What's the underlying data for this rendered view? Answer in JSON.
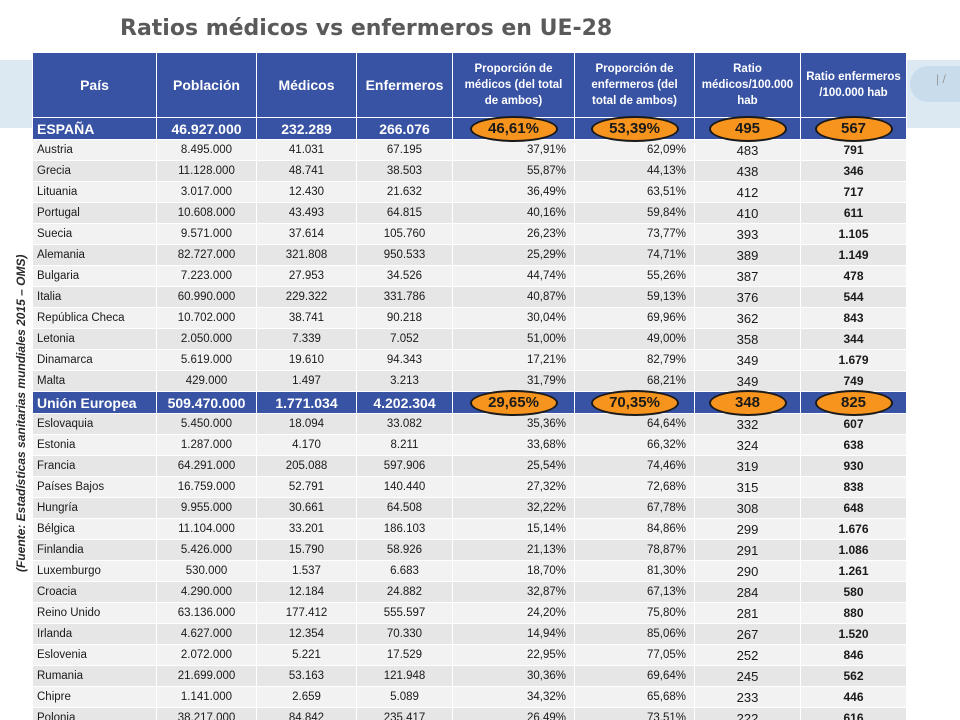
{
  "title": "Ratios médicos vs enfermeros en UE-28",
  "source_note": "(Fuente: Estadísticas sanitarias mundiales  2015 – OMS)",
  "right_mark": "| /",
  "colors": {
    "header_bg": "#3953a4",
    "highlight_oval": "#f7941d",
    "row_a": "#e6e6e6",
    "row_b": "#f2f2f2"
  },
  "headers": [
    "País",
    "Población",
    "Médicos",
    "Enfermeros",
    "Proporción de médicos (del total de ambos)",
    "Proporción de enfermeros (del total de ambos)",
    "Ratio médicos/100.000 hab",
    "Ratio enfermeros /100.000 hab"
  ],
  "rows_top": [
    [
      "ESPAÑA",
      "46.927.000",
      "232.289",
      "266.076",
      "46,61%",
      "53,39%",
      "495",
      "567"
    ],
    [
      "Austria",
      "8.495.000",
      "41.031",
      "67.195",
      "37,91%",
      "62,09%",
      "483",
      "791"
    ],
    [
      "Grecia",
      "11.128.000",
      "48.741",
      "38.503",
      "55,87%",
      "44,13%",
      "438",
      "346"
    ],
    [
      "Lituania",
      "3.017.000",
      "12.430",
      "21.632",
      "36,49%",
      "63,51%",
      "412",
      "717"
    ],
    [
      "Portugal",
      "10.608.000",
      "43.493",
      "64.815",
      "40,16%",
      "59,84%",
      "410",
      "611"
    ],
    [
      "Suecia",
      "9.571.000",
      "37.614",
      "105.760",
      "26,23%",
      "73,77%",
      "393",
      "1.105"
    ],
    [
      "Alemania",
      "82.727.000",
      "321.808",
      "950.533",
      "25,29%",
      "74,71%",
      "389",
      "1.149"
    ],
    [
      "Bulgaria",
      "7.223.000",
      "27.953",
      "34.526",
      "44,74%",
      "55,26%",
      "387",
      "478"
    ],
    [
      "Italia",
      "60.990.000",
      "229.322",
      "331.786",
      "40,87%",
      "59,13%",
      "376",
      "544"
    ],
    [
      "República Checa",
      "10.702.000",
      "38.741",
      "90.218",
      "30,04%",
      "69,96%",
      "362",
      "843"
    ],
    [
      "Letonia",
      "2.050.000",
      "7.339",
      "7.052",
      "51,00%",
      "49,00%",
      "358",
      "344"
    ],
    [
      "Dinamarca",
      "5.619.000",
      "19.610",
      "94.343",
      "17,21%",
      "82,79%",
      "349",
      "1.679"
    ],
    [
      "Malta",
      "429.000",
      "1.497",
      "3.213",
      "31,79%",
      "68,21%",
      "349",
      "749"
    ],
    [
      "Unión Europea",
      "509.470.000",
      "1.771.034",
      "4.202.304",
      "29,65%",
      "70,35%",
      "348",
      "825"
    ],
    [
      "Eslovaquia",
      "5.450.000",
      "18.094",
      "33.082",
      "35,36%",
      "64,64%",
      "332",
      "607"
    ],
    [
      "Estonia",
      "1.287.000",
      "4.170",
      "8.211",
      "33,68%",
      "66,32%",
      "324",
      "638"
    ],
    [
      "Francia",
      "64.291.000",
      "205.088",
      "597.906",
      "25,54%",
      "74,46%",
      "319",
      "930"
    ],
    [
      "Países Bajos",
      "16.759.000",
      "52.791",
      "140.440",
      "27,32%",
      "72,68%",
      "315",
      "838"
    ],
    [
      "Hungría",
      "9.955.000",
      "30.661",
      "64.508",
      "32,22%",
      "67,78%",
      "308",
      "648"
    ],
    [
      "Bélgica",
      "11.104.000",
      "33.201",
      "186.103",
      "15,14%",
      "84,86%",
      "299",
      "1.676"
    ],
    [
      "Finlandia",
      "5.426.000",
      "15.790",
      "58.926",
      "21,13%",
      "78,87%",
      "291",
      "1.086"
    ],
    [
      "Luxemburgo",
      "530.000",
      "1.537",
      "6.683",
      "18,70%",
      "81,30%",
      "290",
      "1.261"
    ],
    [
      "Croacia",
      "4.290.000",
      "12.184",
      "24.882",
      "32,87%",
      "67,13%",
      "284",
      "580"
    ],
    [
      "Reino Unido",
      "63.136.000",
      "177.412",
      "555.597",
      "24,20%",
      "75,80%",
      "281",
      "880"
    ],
    [
      "Irlanda",
      "4.627.000",
      "12.354",
      "70.330",
      "14,94%",
      "85,06%",
      "267",
      "1.520"
    ],
    [
      "Eslovenia",
      "2.072.000",
      "5.221",
      "17.529",
      "22,95%",
      "77,05%",
      "252",
      "846"
    ],
    [
      "Rumania",
      "21.699.000",
      "53.163",
      "121.948",
      "30,36%",
      "69,64%",
      "245",
      "562"
    ],
    [
      "Chipre",
      "1.141.000",
      "2.659",
      "5.089",
      "34,32%",
      "65,68%",
      "233",
      "446"
    ],
    [
      "Polonia",
      "38.217.000",
      "84.842",
      "235.417",
      "26,49%",
      "73,51%",
      "222",
      "616"
    ]
  ],
  "highlight_rows": [
    "ESPAÑA",
    "Unión Europea"
  ]
}
